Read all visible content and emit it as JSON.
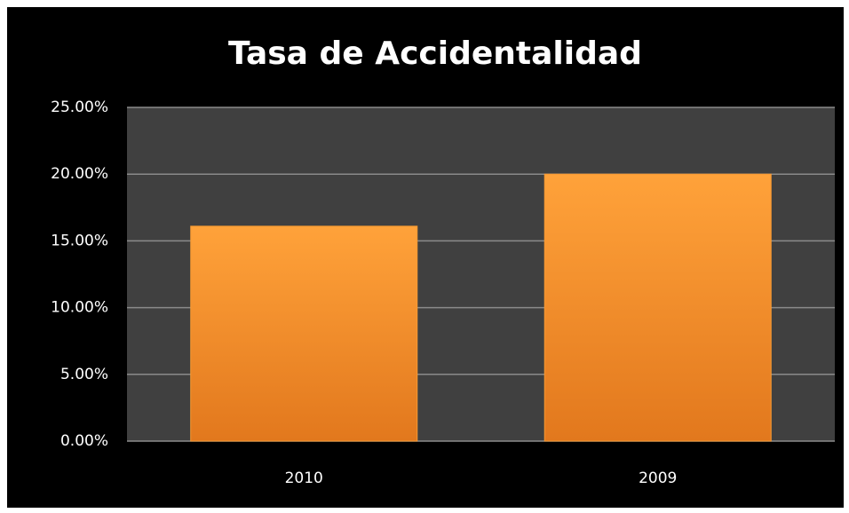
{
  "chart_data": {
    "type": "bar",
    "title": "Tasa de Accidentalidad",
    "categories": [
      "2010",
      "2009"
    ],
    "values": [
      16.1,
      20.0
    ],
    "color": "#f79a32",
    "ylim": [
      0,
      25
    ],
    "yticks": [
      {
        "value": 0,
        "label": "0.00%"
      },
      {
        "value": 5,
        "label": "5.00%"
      },
      {
        "value": 10,
        "label": "10.00%"
      },
      {
        "value": 15,
        "label": "15.00%"
      },
      {
        "value": 20,
        "label": "20.00%"
      },
      {
        "value": 25,
        "label": "25.00%"
      }
    ],
    "grid": true
  }
}
